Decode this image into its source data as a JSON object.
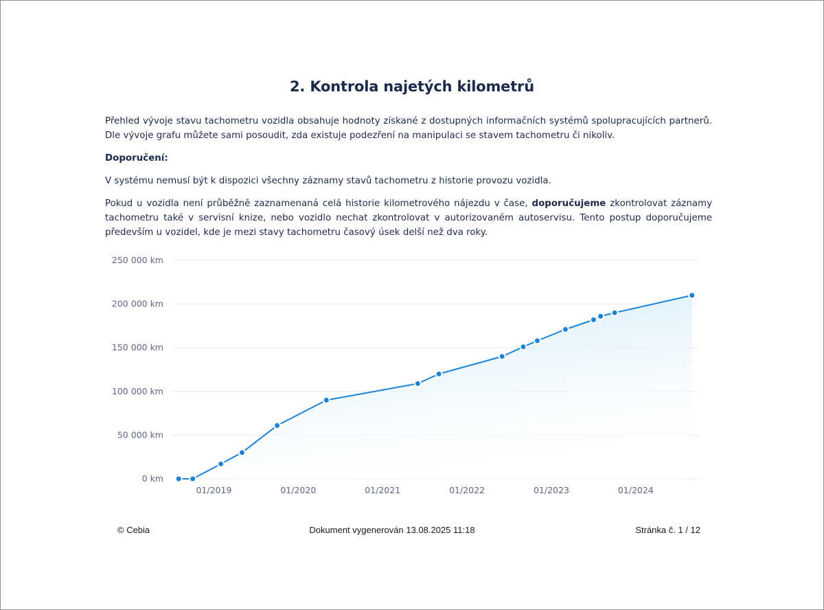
{
  "document": {
    "title": "2. Kontrola najetých kilometrů",
    "intro": "Přehled vývoje stavu tachometru vozidla obsahuje hodnoty získané z dostupných informačních systémů spolupracujících partnerů. Dle vývoje grafu můžete sami posoudit, zda existuje podezření na manipulaci se stavem tachometru či nikoliv.",
    "recommendation_label": "Doporučení:",
    "note": "V systému nemusí být k dispozici všechny záznamy stavů tachometru z historie provozu vozidla.",
    "advice_part1": "Pokud u vozidla není průběžně zaznamenaná celá historie kilometrového nájezdu v čase, ",
    "advice_bold": "doporučujeme",
    "advice_part2": " zkontrolovat záznamy tachometru také v servisní knize, nebo vozidlo nechat zkontrolovat v autorizovaném autoservisu. Tento postup doporučujeme především u vozidel, kde je mezi stavy tachometru časový úsek delší než dva roky."
  },
  "chart_data": {
    "type": "area",
    "title": "",
    "xlabel": "",
    "ylabel": "",
    "y_unit": "km",
    "ylim": [
      0,
      250000
    ],
    "y_ticks": [
      0,
      50000,
      100000,
      150000,
      200000,
      250000
    ],
    "y_tick_labels": [
      "0 km",
      "50 000 km",
      "100 000 km",
      "150 000 km",
      "200 000 km",
      "250 000 km"
    ],
    "x_ticks": [
      "2019-01",
      "2020-01",
      "2021-01",
      "2022-01",
      "2023-01",
      "2024-01"
    ],
    "x_tick_labels": [
      "01/2019",
      "01/2020",
      "01/2021",
      "01/2022",
      "01/2023",
      "01/2024"
    ],
    "xlim": [
      "2018-07",
      "2024-10"
    ],
    "grid": true,
    "legend": false,
    "line_color": "#1a82d8",
    "fill_color": "#d6eef9",
    "series": [
      {
        "x": [
          "2018-08",
          "2018-10",
          "2019-02",
          "2019-05",
          "2019-10",
          "2020-05",
          "2021-06",
          "2021-09",
          "2022-06",
          "2022-09",
          "2022-11",
          "2023-03",
          "2023-07",
          "2023-08",
          "2023-10",
          "2024-09"
        ],
        "values": [
          0,
          0,
          17000,
          30000,
          61000,
          90000,
          109000,
          120000,
          140000,
          151000,
          158000,
          171000,
          182000,
          186000,
          190000,
          210000
        ]
      }
    ]
  },
  "footer": {
    "copyright": "© Cebia",
    "generated": "Dokument vygenerován 13.08.2025 11:18",
    "page": "Stránka č. 1 / 12"
  }
}
